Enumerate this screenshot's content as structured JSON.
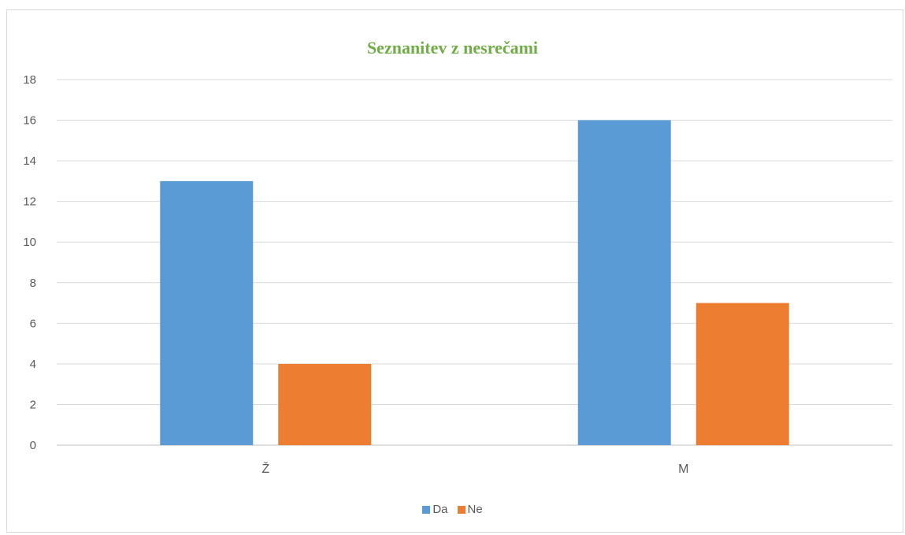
{
  "chart_data": {
    "type": "bar",
    "title": "Seznanitev z nesrečami",
    "categories": [
      "Ž",
      "M"
    ],
    "series": [
      {
        "name": "Da",
        "values": [
          13,
          16
        ],
        "color": "#5b9bd5"
      },
      {
        "name": "Ne",
        "values": [
          4,
          7
        ],
        "color": "#ed7d31"
      }
    ],
    "ylim": [
      0,
      18
    ],
    "yticks": [
      0,
      2,
      4,
      6,
      8,
      10,
      12,
      14,
      16,
      18
    ],
    "grid": true,
    "legend_position": "bottom",
    "title_color": "#70ad47"
  }
}
